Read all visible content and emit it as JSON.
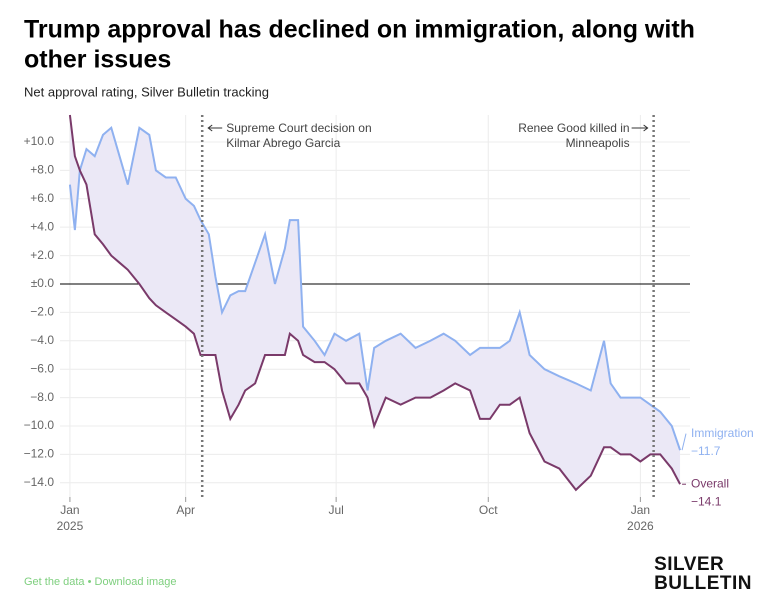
{
  "chart_data": {
    "type": "line",
    "title": "Trump approval has declined on immigration, along with other issues",
    "subtitle": "Net approval rating, Silver Bulletin tracking",
    "x": [
      20,
      23,
      26,
      30,
      35,
      40,
      45,
      50,
      55,
      62,
      68,
      72,
      78,
      84,
      90,
      95,
      99,
      104,
      108,
      112,
      117,
      122,
      126,
      132,
      138,
      144,
      150,
      153,
      158,
      161,
      168,
      174,
      180,
      187,
      195,
      200,
      204,
      211,
      220,
      229,
      238,
      246,
      253,
      262,
      268,
      274,
      280,
      286,
      292,
      298,
      307,
      316,
      326,
      335,
      343,
      347,
      353,
      359,
      365,
      371,
      377,
      384,
      389
    ],
    "series": [
      {
        "name": "Immigration",
        "color": "#8fb1f0",
        "end_label": "−11.7",
        "values": [
          7,
          3.8,
          8,
          9.5,
          9,
          10.5,
          11,
          9,
          7,
          11,
          10.5,
          8,
          7.5,
          7.5,
          6,
          5.5,
          4.5,
          3.5,
          0.5,
          -2,
          -0.8,
          -0.5,
          -0.5,
          1.5,
          3.5,
          0,
          2.5,
          4.5,
          4.5,
          -3,
          -4,
          -5,
          -3.5,
          -4,
          -3.5,
          -7.5,
          -4.5,
          -4,
          -3.5,
          -4.5,
          -4,
          -3.5,
          -4,
          -5,
          -4.5,
          -4.5,
          -4.5,
          -4,
          -2,
          -5,
          -6,
          -6.5,
          -7,
          -7.5,
          -4,
          -7,
          -8,
          -8,
          -8,
          -8.5,
          -9,
          -10,
          -11.7
        ]
      },
      {
        "name": "Overall",
        "color": "#7a3a6a",
        "end_label": "−14.1",
        "values": [
          11.9,
          9,
          8,
          7,
          3.5,
          2.8,
          2,
          1.5,
          1,
          0,
          -1,
          -1.5,
          -2,
          -2.5,
          -3,
          -3.5,
          -5,
          -5,
          -5,
          -7.5,
          -9.5,
          -8.5,
          -7.5,
          -7,
          -5,
          -5,
          -5,
          -3.5,
          -4,
          -5,
          -5.5,
          -5.5,
          -6,
          -7,
          -7,
          -8,
          -10,
          -8,
          -8.5,
          -8,
          -8,
          -7.5,
          -7,
          -7.5,
          -9.5,
          -9.5,
          -8.5,
          -8.5,
          -8,
          -10.5,
          -12.5,
          -13,
          -14.5,
          -13.5,
          -11.5,
          -11.5,
          -12,
          -12,
          -12.5,
          -12,
          -12,
          -13,
          -14.1
        ]
      }
    ],
    "fill_between": "#ebe8f6",
    "xlim": [
      14,
      395
    ],
    "xticks": [
      {
        "value": 20,
        "label": "Jan",
        "year": "2025"
      },
      {
        "value": 90,
        "label": "Apr"
      },
      {
        "value": 181,
        "label": "Jul"
      },
      {
        "value": 273,
        "label": "Oct"
      },
      {
        "value": 365,
        "label": "Jan",
        "year": "2026"
      }
    ],
    "ylim": [
      -15,
      11.9
    ],
    "yticks": [
      {
        "value": 10,
        "label": "+10.0"
      },
      {
        "value": 8,
        "label": "+8.0"
      },
      {
        "value": 6,
        "label": "+6.0"
      },
      {
        "value": 4,
        "label": "+4.0"
      },
      {
        "value": 2,
        "label": "+2.0"
      },
      {
        "value": 0,
        "label": "±0.0"
      },
      {
        "value": -2,
        "label": "−2.0"
      },
      {
        "value": -4,
        "label": "−4.0"
      },
      {
        "value": -6,
        "label": "−6.0"
      },
      {
        "value": -8,
        "label": "−8.0"
      },
      {
        "value": -10,
        "label": "−10.0"
      },
      {
        "value": -12,
        "label": "−12.0"
      },
      {
        "value": -14,
        "label": "−14.0"
      }
    ],
    "grid": true,
    "zero_line": true,
    "annotations": [
      {
        "x": 100,
        "side": "right",
        "lines": [
          "Supreme Court decision on",
          "Kilmar Abrego Garcia"
        ]
      },
      {
        "x": 373,
        "side": "left",
        "lines": [
          "Renee Good killed in",
          "Minneapolis"
        ]
      }
    ]
  },
  "footer": {
    "links": [
      "Get the data",
      "Download image"
    ],
    "separator": "•",
    "logo": [
      "SILVER",
      "BULLETIN"
    ]
  }
}
